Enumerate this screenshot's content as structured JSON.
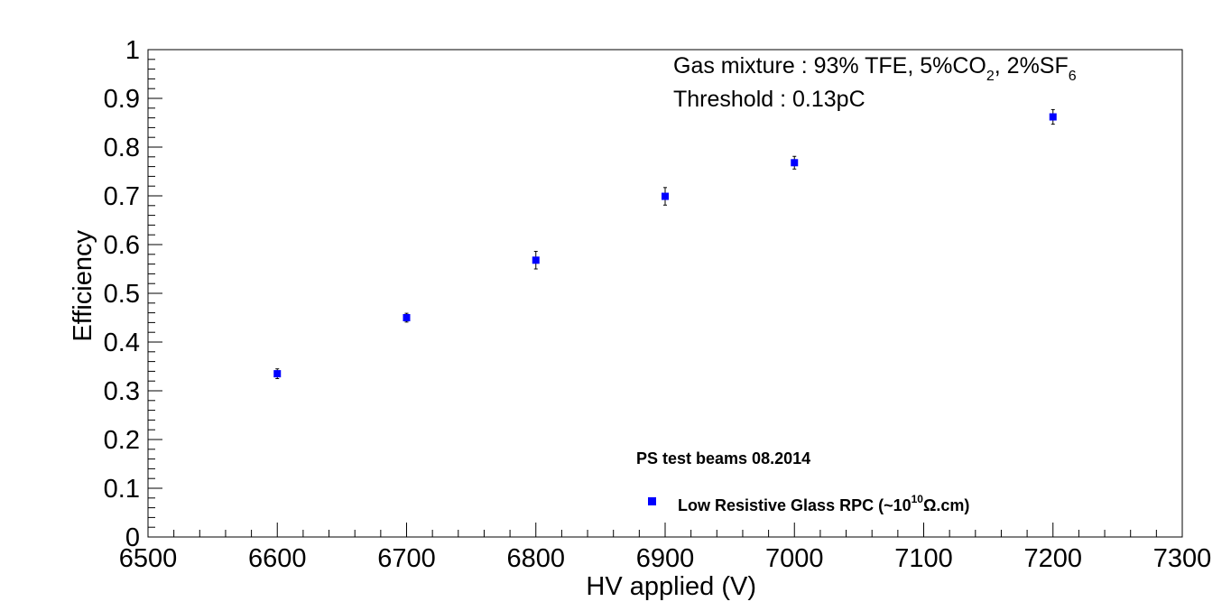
{
  "chart_data": {
    "type": "scatter",
    "xlabel": "HV applied (V)",
    "ylabel": "Efficiency",
    "xlim": [
      6500,
      7300
    ],
    "ylim": [
      0,
      1
    ],
    "x_ticks": [
      "6500",
      "6600",
      "6700",
      "6800",
      "6900",
      "7000",
      "7100",
      "7200",
      "7300"
    ],
    "y_ticks": [
      "0",
      "0.1",
      "0.2",
      "0.3",
      "0.4",
      "0.5",
      "0.6",
      "0.7",
      "0.8",
      "0.9",
      "1"
    ],
    "grid": false,
    "legend_position": "bottom-center",
    "series": [
      {
        "name": "Low Resistive Glass RPC (~10^10 Ω.cm)",
        "color": "#0000ff",
        "marker": "square",
        "x": [
          6600,
          6700,
          6800,
          6900,
          7000,
          7200
        ],
        "y": [
          0.335,
          0.45,
          0.568,
          0.699,
          0.768,
          0.862
        ],
        "yerr": [
          0.01,
          0.009,
          0.018,
          0.018,
          0.013,
          0.015
        ]
      }
    ],
    "annotations": {
      "gas_prefix": "Gas mixture : 93% TFE, 5%CO",
      "gas_sub1": "2",
      "gas_mid": ", 2%SF",
      "gas_sub2": "6",
      "threshold": "Threshold : 0.13pC"
    },
    "legend": {
      "title": "PS test beams 08.2014",
      "entry_prefix": "Low Resistive Glass RPC (~10",
      "entry_sup": "10",
      "entry_suffix": "Ω.cm)"
    }
  }
}
